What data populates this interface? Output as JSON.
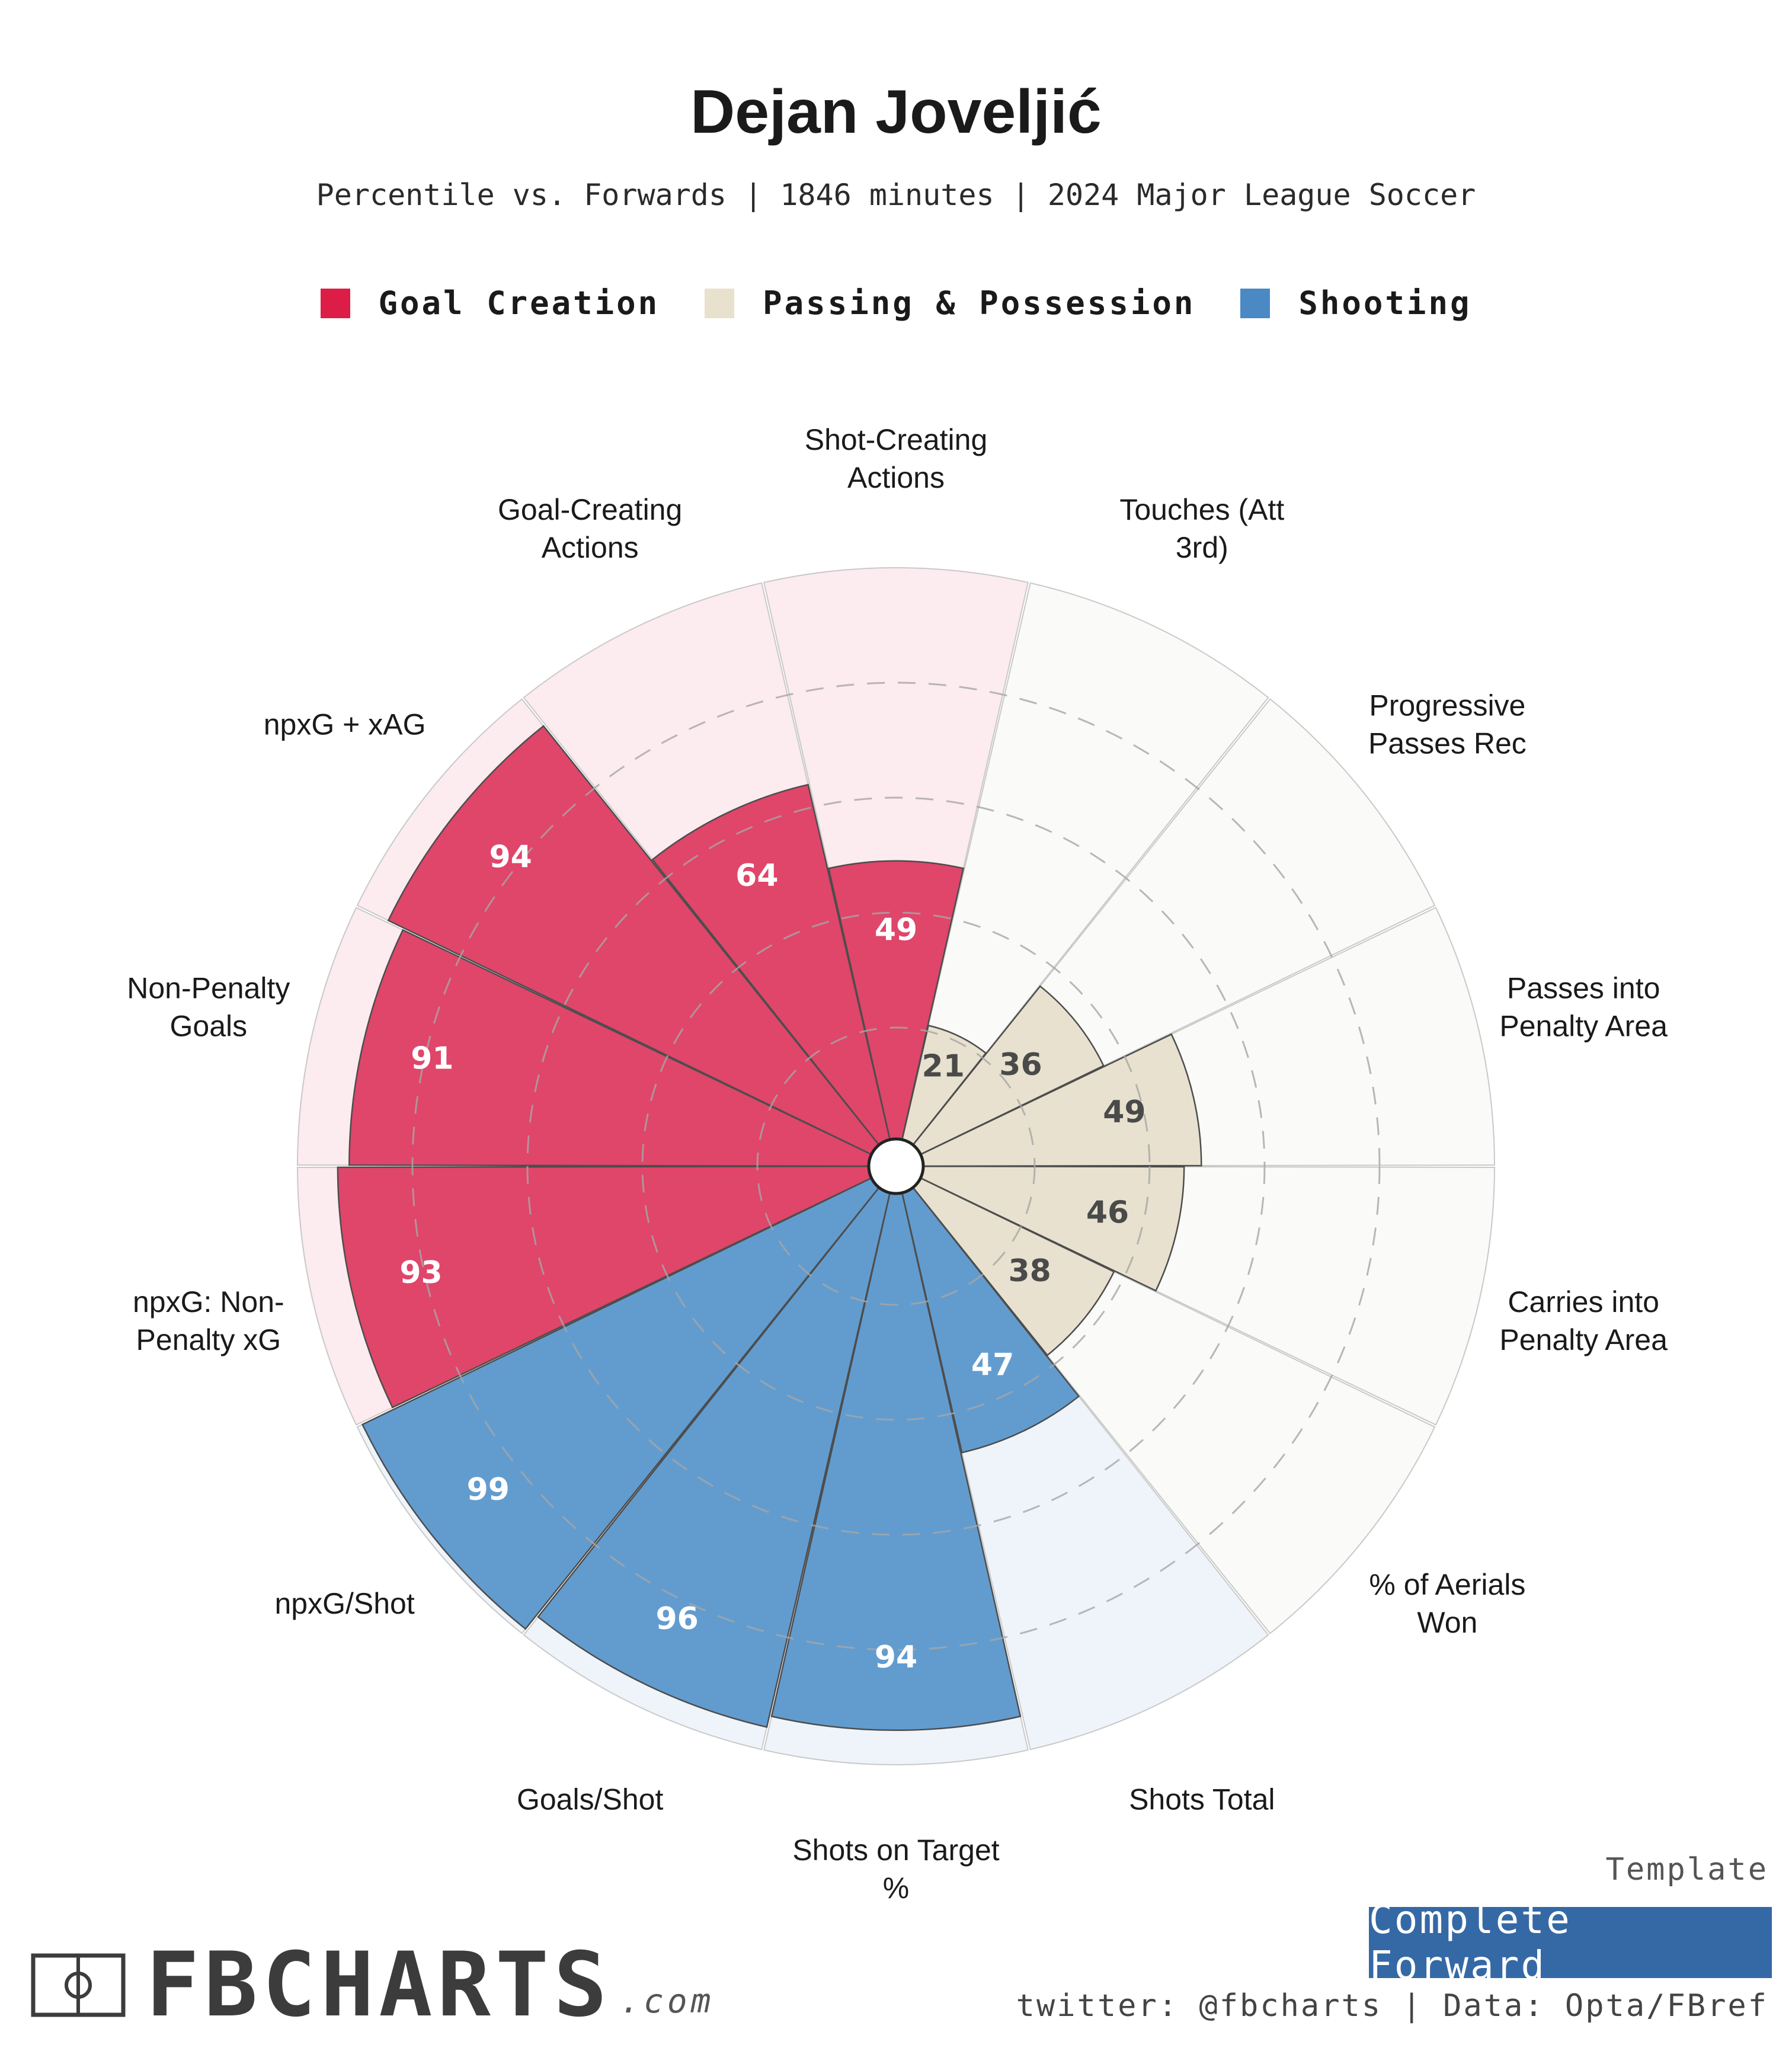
{
  "header": {
    "title": "Dejan Joveljić",
    "subtitle": "Percentile vs. Forwards | 1846 minutes | 2024 Major League Soccer"
  },
  "legend": [
    {
      "label": "Goal Creation",
      "color": "#dc1e47"
    },
    {
      "label": "Passing & Possession",
      "color": "#e8e1cd"
    },
    {
      "label": "Shooting",
      "color": "#4a89c4"
    }
  ],
  "chart_data": {
    "type": "polar-bar",
    "title": "Dejan Joveljić",
    "range": [
      0,
      100
    ],
    "grid_rings": [
      20,
      40,
      60,
      80
    ],
    "categories": [
      "Shot-Creating Actions",
      "Touches (Att 3rd)",
      "Progressive Passes Rec",
      "Passes into Penalty Area",
      "Carries into Penalty Area",
      "% of Aerials Won",
      "Shots Total",
      "Shots on Target %",
      "Goals/Shot",
      "npxG/Shot",
      "npxG: Non-Penalty xG",
      "Non-Penalty Goals",
      "npxG + xAG",
      "Goal-Creating Actions"
    ],
    "label_lines": [
      [
        "Shot-Creating",
        "Actions"
      ],
      [
        "Touches (Att",
        "3rd)"
      ],
      [
        "Progressive",
        "Passes Rec"
      ],
      [
        "Passes into",
        "Penalty Area"
      ],
      [
        "Carries into",
        "Penalty Area"
      ],
      [
        "% of Aerials",
        "Won"
      ],
      [
        "Shots Total"
      ],
      [
        "Shots on Target",
        "%"
      ],
      [
        "Goals/Shot"
      ],
      [
        "npxG/Shot"
      ],
      [
        "npxG: Non-",
        "Penalty xG"
      ],
      [
        "Non-Penalty",
        "Goals"
      ],
      [
        "npxG + xAG"
      ],
      [
        "Goal-Creating",
        "Actions"
      ]
    ],
    "values": [
      49,
      21,
      36,
      49,
      46,
      38,
      47,
      94,
      96,
      99,
      93,
      91,
      94,
      64
    ],
    "value_labels": [
      "49",
      "21",
      "36",
      "49",
      "46",
      "38",
      "47",
      "94",
      "96",
      "99",
      "93",
      "91",
      "94",
      "64"
    ],
    "groups": [
      "Goal Creation",
      "Passing & Possession",
      "Passing & Possession",
      "Passing & Possession",
      "Passing & Possession",
      "Passing & Possession",
      "Shooting",
      "Shooting",
      "Shooting",
      "Shooting",
      "Goal Creation",
      "Goal Creation",
      "Goal Creation",
      "Goal Creation"
    ],
    "colors": {
      "Goal Creation": {
        "bar": "#e0456a",
        "bg": "#fcebef",
        "label": "#ffffff"
      },
      "Passing & Possession": {
        "bar": "#e8e1cf",
        "bg": "#fafaf8",
        "label": "#4a4a4a"
      },
      "Shooting": {
        "bar": "#629ccf",
        "bg": "#eff4fa",
        "label": "#ffffff"
      }
    }
  },
  "footer": {
    "template_caption": "Template",
    "template_name": "Complete Forward",
    "credits": "twitter: @fbcharts | Data: Opta/FBref",
    "logo_text": "FBCHARTS",
    "logo_suffix": ".com"
  }
}
